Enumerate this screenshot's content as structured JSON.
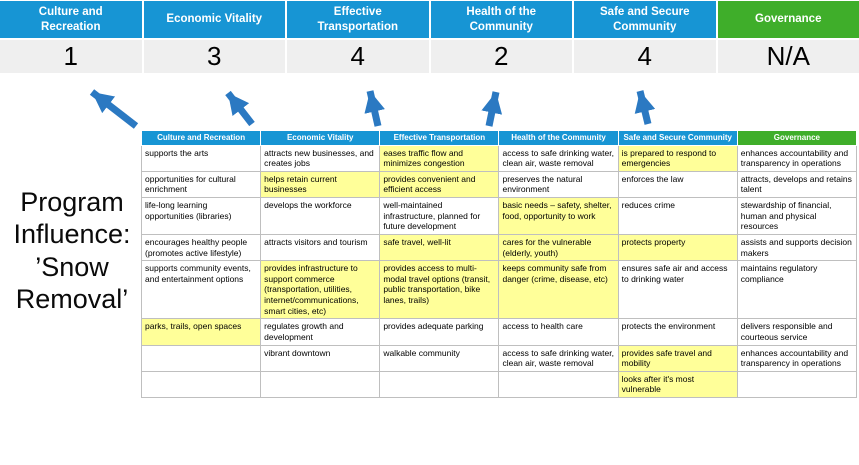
{
  "title": {
    "line1": "Program Influence:",
    "line2": "’Snow Removal’"
  },
  "colors": {
    "pillar_blue": "#1795d4",
    "governance_green": "#3fae2a",
    "highlight_yellow": "#ffff99",
    "score_band_gray": "#efefef",
    "arrow_blue": "#2b79c2"
  },
  "scoreboard": {
    "columns": [
      {
        "label": "Culture and Recreation",
        "score": "1",
        "color": "#1795d4"
      },
      {
        "label": "Economic Vitality",
        "score": "3",
        "color": "#1795d4"
      },
      {
        "label": "Effective Transportation",
        "score": "4",
        "color": "#1795d4"
      },
      {
        "label": "Health of the Community",
        "score": "2",
        "color": "#1795d4"
      },
      {
        "label": "Safe and Secure Community",
        "score": "4",
        "color": "#1795d4"
      },
      {
        "label": "Governance",
        "score": "N/A",
        "color": "#3fae2a"
      }
    ]
  },
  "matrix": {
    "headers": [
      {
        "label": "Culture and Recreation",
        "color": "#1795d4"
      },
      {
        "label": "Economic Vitality",
        "color": "#1795d4"
      },
      {
        "label": "Effective Transportation",
        "color": "#1795d4"
      },
      {
        "label": "Health of the Community",
        "color": "#1795d4"
      },
      {
        "label": "Safe and Secure Community",
        "color": "#1795d4"
      },
      {
        "label": "Governance",
        "color": "#3fae2a"
      }
    ],
    "rows": [
      [
        {
          "t": "supports the arts",
          "h": false
        },
        {
          "t": "attracts new businesses, and creates jobs",
          "h": false
        },
        {
          "t": "eases traffic flow and minimizes congestion",
          "h": true
        },
        {
          "t": "access to safe drinking water, clean air, waste removal",
          "h": false
        },
        {
          "t": "is prepared to respond to emergencies",
          "h": true
        },
        {
          "t": "enhances accountability and transparency in operations",
          "h": false
        }
      ],
      [
        {
          "t": "opportunities for cultural enrichment",
          "h": false
        },
        {
          "t": "helps retain current businesses",
          "h": true
        },
        {
          "t": "provides convenient and efficient access",
          "h": true
        },
        {
          "t": "preserves the natural environment",
          "h": false
        },
        {
          "t": "enforces the law",
          "h": false
        },
        {
          "t": "attracts, develops and retains talent",
          "h": false
        }
      ],
      [
        {
          "t": "life-long learning opportunities (libraries)",
          "h": false
        },
        {
          "t": "develops the workforce",
          "h": false
        },
        {
          "t": "well-maintained infrastructure, planned for future development",
          "h": false
        },
        {
          "t": "basic needs – safety, shelter, food, opportunity to work",
          "h": true
        },
        {
          "t": "reduces crime",
          "h": false
        },
        {
          "t": "stewardship of financial, human and physical resources",
          "h": false
        }
      ],
      [
        {
          "t": "encourages healthy people (promotes active lifestyle)",
          "h": false
        },
        {
          "t": "attracts visitors and tourism",
          "h": false
        },
        {
          "t": "safe travel, well-lit",
          "h": true
        },
        {
          "t": "cares for the vulnerable (elderly, youth)",
          "h": true
        },
        {
          "t": "protects property",
          "h": true
        },
        {
          "t": "assists and supports decision makers",
          "h": false
        }
      ],
      [
        {
          "t": "supports community events, and entertainment options",
          "h": false
        },
        {
          "t": "provides infrastructure to support commerce (transportation, utilities, internet/communications, smart cities, etc)",
          "h": true
        },
        {
          "t": "provides access to multi-modal travel options (transit, public transportation, bike lanes, trails)",
          "h": true
        },
        {
          "t": "keeps community safe from danger (crime, disease, etc)",
          "h": true
        },
        {
          "t": "ensures safe air and access to drinking water",
          "h": false
        },
        {
          "t": "maintains regulatory compliance",
          "h": false
        }
      ],
      [
        {
          "t": "parks, trails, open spaces",
          "h": true
        },
        {
          "t": "regulates growth and development",
          "h": false
        },
        {
          "t": "provides adequate parking",
          "h": false
        },
        {
          "t": "access to health care",
          "h": false
        },
        {
          "t": "protects the environment",
          "h": false
        },
        {
          "t": "delivers responsible and courteous service",
          "h": false
        }
      ],
      [
        {
          "t": "",
          "h": false
        },
        {
          "t": "vibrant downtown",
          "h": false
        },
        {
          "t": "walkable community",
          "h": false
        },
        {
          "t": "access to safe drinking water, clean air, waste removal",
          "h": false
        },
        {
          "t": "provides safe travel and mobility",
          "h": true
        },
        {
          "t": "enhances accountability and transparency in operations",
          "h": false
        }
      ],
      [
        {
          "t": "",
          "h": false
        },
        {
          "t": "",
          "h": false
        },
        {
          "t": "",
          "h": false
        },
        {
          "t": "",
          "h": false
        },
        {
          "t": "looks after it's most vulnerable",
          "h": true
        },
        {
          "t": "",
          "h": false
        }
      ]
    ]
  }
}
